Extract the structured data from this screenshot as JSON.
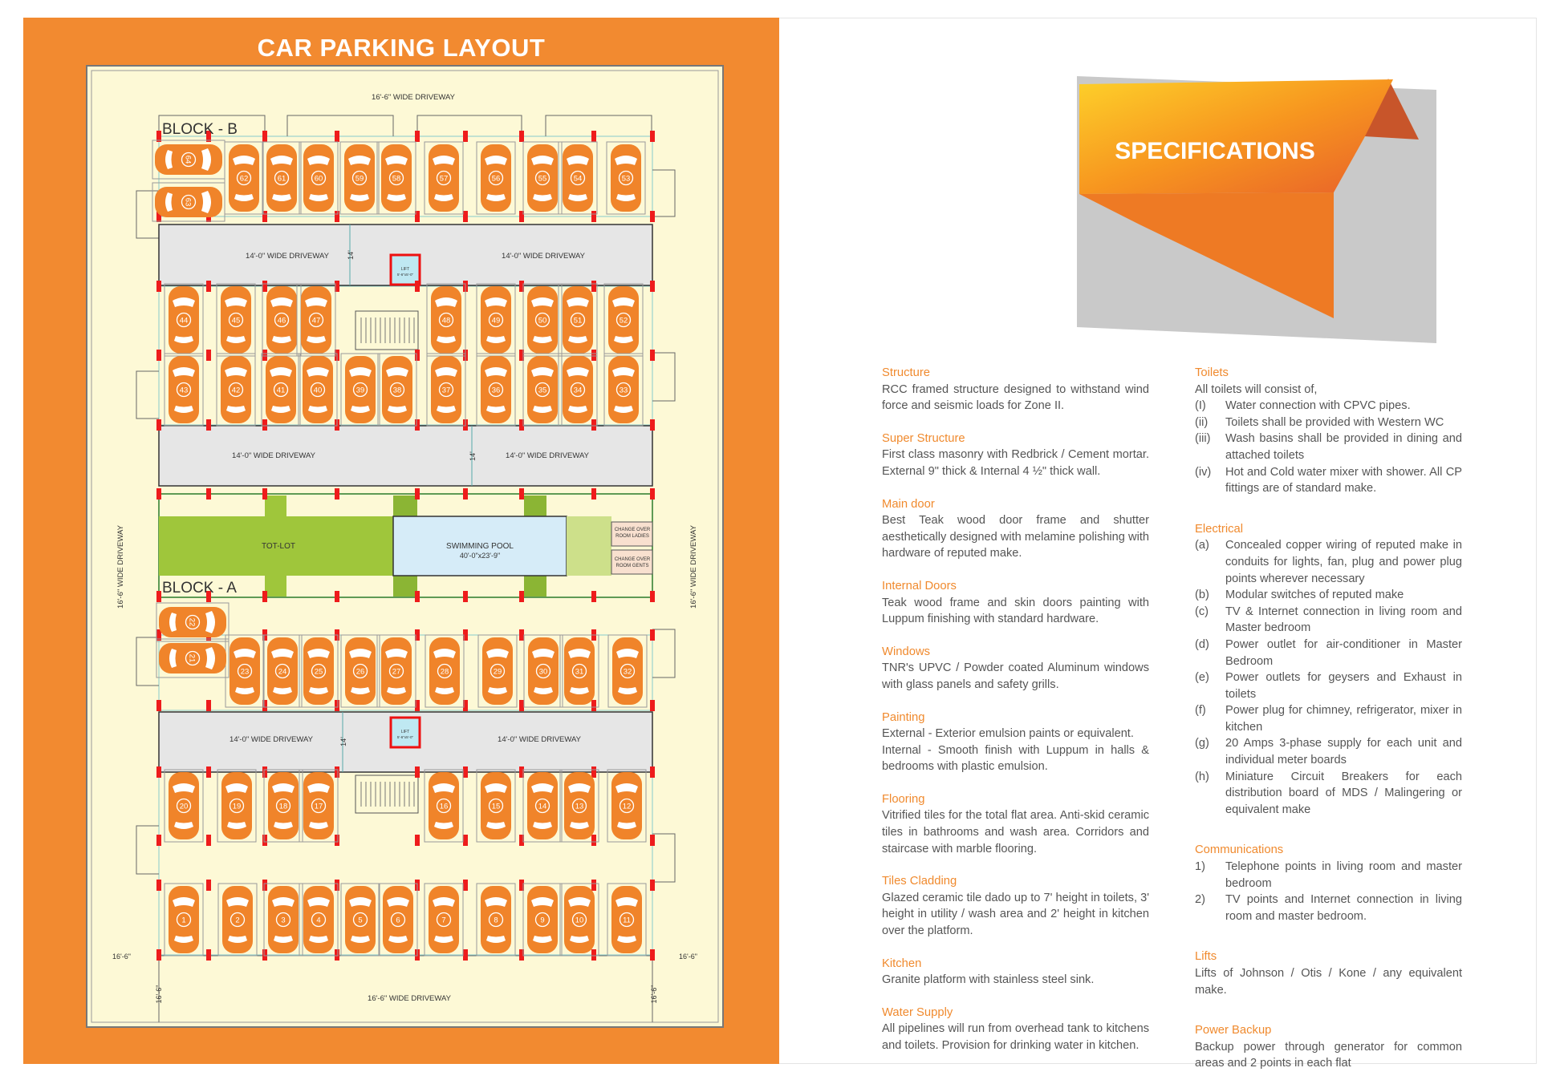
{
  "plan": {
    "title": "CAR PARKING LAYOUT",
    "block_b": "BLOCK - B",
    "block_a": "BLOCK - A",
    "driveway_16": "16'-6\" WIDE DRIVEWAY",
    "driveway_14": "14'-0\" WIDE DRIVEWAY",
    "dim_14": "14'",
    "dim_16": "16'-6\"",
    "lift": "LIFT",
    "lift_size": "5'-6\"x5'-0\"",
    "tot_lot": "TOT-LOT",
    "pool": "SWIMMING POOL",
    "pool_size": "40'-0\"x23'-9\"",
    "change_ladies": [
      "CHANGE OVER",
      "ROOM LADIES"
    ],
    "change_gents": [
      "CHANGE OVER",
      "ROOM GENTS"
    ],
    "rows": {
      "b_side": [
        64,
        63
      ],
      "b_top": [
        62,
        61,
        60,
        59,
        58,
        57,
        56,
        55,
        54,
        53
      ],
      "b_mid1": [
        44,
        45,
        46,
        47,
        48,
        49,
        50,
        51,
        52
      ],
      "b_mid2": [
        43,
        42,
        41,
        40,
        39,
        38,
        37,
        36,
        35,
        34,
        33
      ],
      "a_side": [
        22,
        21
      ],
      "a_top": [
        23,
        24,
        25,
        26,
        27,
        28,
        29,
        30,
        31,
        32
      ],
      "a_mid": [
        20,
        19,
        18,
        17,
        16,
        15,
        14,
        13,
        12
      ],
      "a_bottom": [
        1,
        2,
        3,
        4,
        5,
        6,
        7,
        8,
        9,
        10,
        11
      ]
    },
    "colors": {
      "panel": "#f28a30",
      "plan_bg": "#fdf9d6",
      "car": "#f0842a",
      "green": "#9fc63b",
      "pool": "#d6ecf8",
      "driveway": "#e6e6e6",
      "column": "#ee1c1c"
    }
  },
  "specs": {
    "title": "SPECIFICATIONS",
    "left": [
      {
        "heading": "Structure",
        "body": "RCC framed structure designed to withstand wind force and seismic loads for Zone II."
      },
      {
        "heading": "Super Structure",
        "body": "First class masonry with Redbrick / Cement mortar. External 9\" thick & Internal 4 ½\"  thick wall."
      },
      {
        "heading": "Main door",
        "body": "Best Teak wood door frame and shutter aesthetically designed with melamine polishing with hardware of reputed make."
      },
      {
        "heading": "Internal Doors",
        "body": "Teak wood frame and skin doors painting with Luppum finishing with standard hardware."
      },
      {
        "heading": "Windows",
        "body": "TNR's UPVC / Powder coated Aluminum windows with glass panels and safety grills."
      },
      {
        "heading": "Painting",
        "body": "External - Exterior emulsion paints or equivalent.",
        "body2": "Internal - Smooth finish with Luppum in halls & bedrooms with plastic emulsion."
      },
      {
        "heading": "Flooring",
        "body": "Vitrified tiles for the total flat area. Anti-skid ceramic tiles in bathrooms and wash area. Corridors and staircase with marble flooring."
      },
      {
        "heading": "Tiles Cladding",
        "body": "Glazed ceramic tile dado up to 7' height in toilets, 3' height in utility / wash area and 2' height in kitchen over the platform."
      },
      {
        "heading": "Kitchen",
        "body": "Granite platform with stainless steel sink."
      },
      {
        "heading": "Water Supply",
        "body": "All pipelines will run from overhead tank to kitchens and toilets. Provision for drinking water in kitchen."
      }
    ],
    "toilets": {
      "heading": "Toilets",
      "intro": "All toilets will consist of,",
      "items": [
        {
          "m": "(I)",
          "t": "Water connection with CPVC pipes."
        },
        {
          "m": "(ii)",
          "t": "Toilets shall be provided with Western WC"
        },
        {
          "m": "(iii)",
          "t": "Wash basins shall be provided in dining and attached toilets"
        },
        {
          "m": "(iv)",
          "t": "Hot and Cold water mixer with shower. All CP fittings are of standard make."
        }
      ]
    },
    "electrical": {
      "heading": "Electrical",
      "items": [
        {
          "m": "(a)",
          "t": "Concealed copper wiring of reputed make in conduits for lights, fan,  plug and power plug points wherever necessary"
        },
        {
          "m": "(b)",
          "t": "Modular switches of reputed make"
        },
        {
          "m": "(c)",
          "t": "TV & Internet connection in living room and Master bedroom"
        },
        {
          "m": "(d)",
          "t": "Power outlet for air-conditioner in Master Bedroom"
        },
        {
          "m": "(e)",
          "t": "Power outlets for geysers and Exhaust in toilets"
        },
        {
          "m": "(f)",
          "t": "Power plug for chimney, refrigerator, mixer in kitchen"
        },
        {
          "m": "(g)",
          "t": "20 Amps 3-phase supply for each unit and individual meter boards"
        },
        {
          "m": "(h)",
          "t": "Miniature Circuit Breakers for each distribution board of MDS / Malingering or equivalent make"
        }
      ]
    },
    "communications": {
      "heading": "Communications",
      "items": [
        {
          "m": "1)",
          "t": "Telephone points in living room and master bedroom"
        },
        {
          "m": "2)",
          "t": "TV points and Internet connection in living room and master bedroom."
        }
      ]
    },
    "lifts": {
      "heading": "Lifts",
      "body": "Lifts of Johnson / Otis / Kone / any equivalent make."
    },
    "power": {
      "heading": "Power Backup",
      "body": "Backup power through generator for common areas and 2 points in each flat"
    }
  }
}
